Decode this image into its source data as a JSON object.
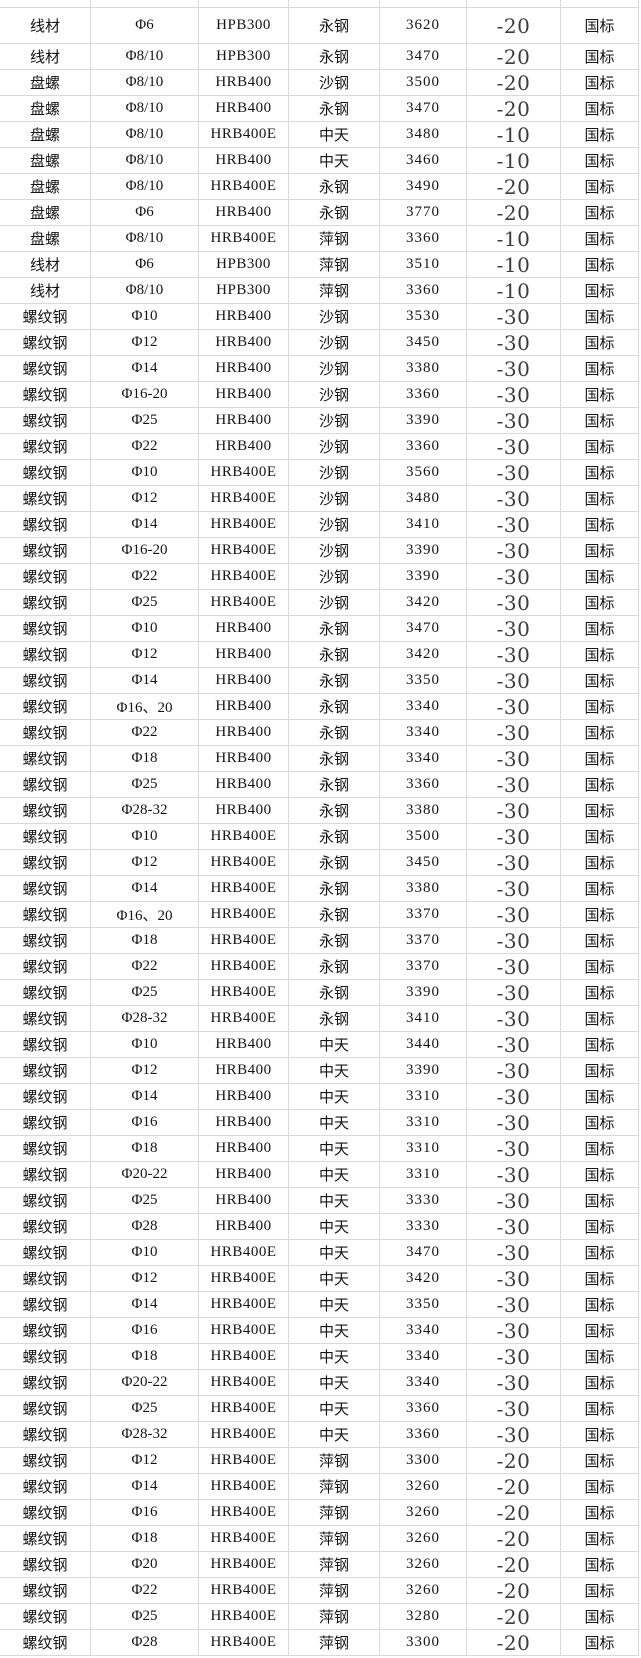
{
  "colors": {
    "background": "#ffffff",
    "gridline": "#d9d9d9",
    "text": "#141414",
    "change_text": "#3c3c3c"
  },
  "column_roles": [
    "product",
    "spec",
    "grade",
    "mill",
    "price",
    "change",
    "standard"
  ],
  "rows": [
    [
      "线材",
      "Φ6",
      "HPB300",
      "永钢",
      "3620",
      "-20",
      "国标"
    ],
    [
      "线材",
      "Φ8/10",
      "HPB300",
      "永钢",
      "3470",
      "-20",
      "国标"
    ],
    [
      "盘螺",
      "Φ8/10",
      "HRB400",
      "沙钢",
      "3500",
      "-20",
      "国标"
    ],
    [
      "盘螺",
      "Φ8/10",
      "HRB400",
      "永钢",
      "3470",
      "-20",
      "国标"
    ],
    [
      "盘螺",
      "Φ8/10",
      "HRB400E",
      "中天",
      "3480",
      "-10",
      "国标"
    ],
    [
      "盘螺",
      "Φ8/10",
      "HRB400",
      "中天",
      "3460",
      "-10",
      "国标"
    ],
    [
      "盘螺",
      "Φ8/10",
      "HRB400E",
      "永钢",
      "3490",
      "-20",
      "国标"
    ],
    [
      "盘螺",
      "Φ6",
      "HRB400",
      "永钢",
      "3770",
      "-20",
      "国标"
    ],
    [
      "盘螺",
      "Φ8/10",
      "HRB400E",
      "萍钢",
      "3360",
      "-10",
      "国标"
    ],
    [
      "线材",
      "Φ6",
      "HPB300",
      "萍钢",
      "3510",
      "-10",
      "国标"
    ],
    [
      "线材",
      "Φ8/10",
      "HPB300",
      "萍钢",
      "3360",
      "-10",
      "国标"
    ],
    [
      "螺纹钢",
      "Φ10",
      "HRB400",
      "沙钢",
      "3530",
      "-30",
      "国标"
    ],
    [
      "螺纹钢",
      "Φ12",
      "HRB400",
      "沙钢",
      "3450",
      "-30",
      "国标"
    ],
    [
      "螺纹钢",
      "Φ14",
      "HRB400",
      "沙钢",
      "3380",
      "-30",
      "国标"
    ],
    [
      "螺纹钢",
      "Φ16-20",
      "HRB400",
      "沙钢",
      "3360",
      "-30",
      "国标"
    ],
    [
      "螺纹钢",
      "Φ25",
      "HRB400",
      "沙钢",
      "3390",
      "-30",
      "国标"
    ],
    [
      "螺纹钢",
      "Φ22",
      "HRB400",
      "沙钢",
      "3360",
      "-30",
      "国标"
    ],
    [
      "螺纹钢",
      "Φ10",
      "HRB400E",
      "沙钢",
      "3560",
      "-30",
      "国标"
    ],
    [
      "螺纹钢",
      "Φ12",
      "HRB400E",
      "沙钢",
      "3480",
      "-30",
      "国标"
    ],
    [
      "螺纹钢",
      "Φ14",
      "HRB400E",
      "沙钢",
      "3410",
      "-30",
      "国标"
    ],
    [
      "螺纹钢",
      "Φ16-20",
      "HRB400E",
      "沙钢",
      "3390",
      "-30",
      "国标"
    ],
    [
      "螺纹钢",
      "Φ22",
      "HRB400E",
      "沙钢",
      "3390",
      "-30",
      "国标"
    ],
    [
      "螺纹钢",
      "Φ25",
      "HRB400E",
      "沙钢",
      "3420",
      "-30",
      "国标"
    ],
    [
      "螺纹钢",
      "Φ10",
      "HRB400",
      "永钢",
      "3470",
      "-30",
      "国标"
    ],
    [
      "螺纹钢",
      "Φ12",
      "HRB400",
      "永钢",
      "3420",
      "-30",
      "国标"
    ],
    [
      "螺纹钢",
      "Φ14",
      "HRB400",
      "永钢",
      "3350",
      "-30",
      "国标"
    ],
    [
      "螺纹钢",
      "Φ16、20",
      "HRB400",
      "永钢",
      "3340",
      "-30",
      "国标"
    ],
    [
      "螺纹钢",
      "Φ22",
      "HRB400",
      "永钢",
      "3340",
      "-30",
      "国标"
    ],
    [
      "螺纹钢",
      "Φ18",
      "HRB400",
      "永钢",
      "3340",
      "-30",
      "国标"
    ],
    [
      "螺纹钢",
      "Φ25",
      "HRB400",
      "永钢",
      "3360",
      "-30",
      "国标"
    ],
    [
      "螺纹钢",
      "Φ28-32",
      "HRB400",
      "永钢",
      "3380",
      "-30",
      "国标"
    ],
    [
      "螺纹钢",
      "Φ10",
      "HRB400E",
      "永钢",
      "3500",
      "-30",
      "国标"
    ],
    [
      "螺纹钢",
      "Φ12",
      "HRB400E",
      "永钢",
      "3450",
      "-30",
      "国标"
    ],
    [
      "螺纹钢",
      "Φ14",
      "HRB400E",
      "永钢",
      "3380",
      "-30",
      "国标"
    ],
    [
      "螺纹钢",
      "Φ16、20",
      "HRB400E",
      "永钢",
      "3370",
      "-30",
      "国标"
    ],
    [
      "螺纹钢",
      "Φ18",
      "HRB400E",
      "永钢",
      "3370",
      "-30",
      "国标"
    ],
    [
      "螺纹钢",
      "Φ22",
      "HRB400E",
      "永钢",
      "3370",
      "-30",
      "国标"
    ],
    [
      "螺纹钢",
      "Φ25",
      "HRB400E",
      "永钢",
      "3390",
      "-30",
      "国标"
    ],
    [
      "螺纹钢",
      "Φ28-32",
      "HRB400E",
      "永钢",
      "3410",
      "-30",
      "国标"
    ],
    [
      "螺纹钢",
      "Φ10",
      "HRB400",
      "中天",
      "3440",
      "-30",
      "国标"
    ],
    [
      "螺纹钢",
      "Φ12",
      "HRB400",
      "中天",
      "3390",
      "-30",
      "国标"
    ],
    [
      "螺纹钢",
      "Φ14",
      "HRB400",
      "中天",
      "3310",
      "-30",
      "国标"
    ],
    [
      "螺纹钢",
      "Φ16",
      "HRB400",
      "中天",
      "3310",
      "-30",
      "国标"
    ],
    [
      "螺纹钢",
      "Φ18",
      "HRB400",
      "中天",
      "3310",
      "-30",
      "国标"
    ],
    [
      "螺纹钢",
      "Φ20-22",
      "HRB400",
      "中天",
      "3310",
      "-30",
      "国标"
    ],
    [
      "螺纹钢",
      "Φ25",
      "HRB400",
      "中天",
      "3330",
      "-30",
      "国标"
    ],
    [
      "螺纹钢",
      "Φ28",
      "HRB400",
      "中天",
      "3330",
      "-30",
      "国标"
    ],
    [
      "螺纹钢",
      "Φ10",
      "HRB400E",
      "中天",
      "3470",
      "-30",
      "国标"
    ],
    [
      "螺纹钢",
      "Φ12",
      "HRB400E",
      "中天",
      "3420",
      "-30",
      "国标"
    ],
    [
      "螺纹钢",
      "Φ14",
      "HRB400E",
      "中天",
      "3350",
      "-30",
      "国标"
    ],
    [
      "螺纹钢",
      "Φ16",
      "HRB400E",
      "中天",
      "3340",
      "-30",
      "国标"
    ],
    [
      "螺纹钢",
      "Φ18",
      "HRB400E",
      "中天",
      "3340",
      "-30",
      "国标"
    ],
    [
      "螺纹钢",
      "Φ20-22",
      "HRB400E",
      "中天",
      "3340",
      "-30",
      "国标"
    ],
    [
      "螺纹钢",
      "Φ25",
      "HRB400E",
      "中天",
      "3360",
      "-30",
      "国标"
    ],
    [
      "螺纹钢",
      "Φ28-32",
      "HRB400E",
      "中天",
      "3360",
      "-30",
      "国标"
    ],
    [
      "螺纹钢",
      "Φ12",
      "HRB400E",
      "萍钢",
      "3300",
      "-20",
      "国标"
    ],
    [
      "螺纹钢",
      "Φ14",
      "HRB400E",
      "萍钢",
      "3260",
      "-20",
      "国标"
    ],
    [
      "螺纹钢",
      "Φ16",
      "HRB400E",
      "萍钢",
      "3260",
      "-20",
      "国标"
    ],
    [
      "螺纹钢",
      "Φ18",
      "HRB400E",
      "萍钢",
      "3260",
      "-20",
      "国标"
    ],
    [
      "螺纹钢",
      "Φ20",
      "HRB400E",
      "萍钢",
      "3260",
      "-20",
      "国标"
    ],
    [
      "螺纹钢",
      "Φ22",
      "HRB400E",
      "萍钢",
      "3260",
      "-20",
      "国标"
    ],
    [
      "螺纹钢",
      "Φ25",
      "HRB400E",
      "萍钢",
      "3280",
      "-20",
      "国标"
    ],
    [
      "螺纹钢",
      "Φ28",
      "HRB400E",
      "萍钢",
      "3300",
      "-20",
      "国标"
    ]
  ]
}
